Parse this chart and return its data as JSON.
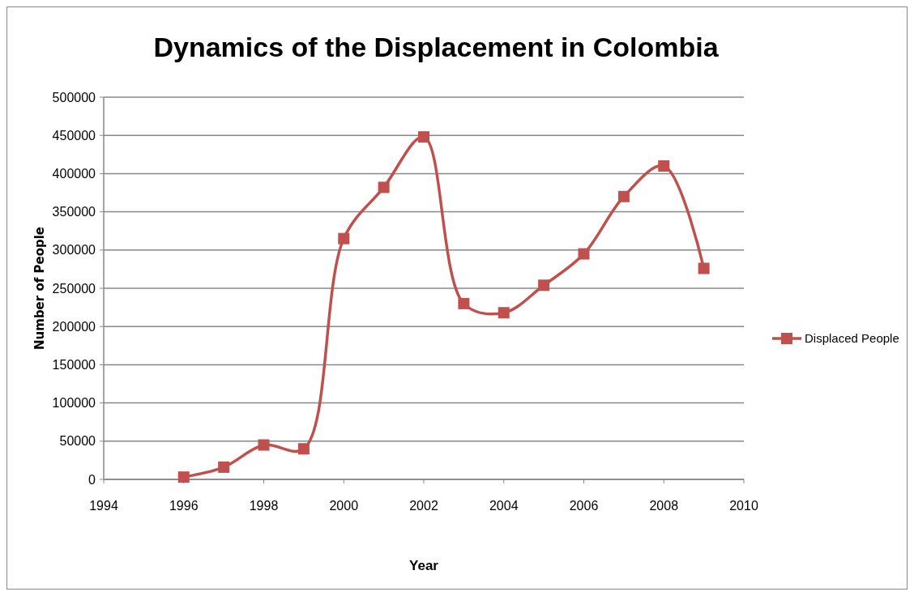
{
  "chart_data": {
    "type": "line",
    "title": "Dynamics of the Displacement in Colombia",
    "xlabel": "Year",
    "ylabel": "Number of People",
    "x": [
      1996,
      1997,
      1998,
      1999,
      2000,
      2001,
      2002,
      2003,
      2004,
      2005,
      2006,
      2007,
      2008,
      2009
    ],
    "series": [
      {
        "name": "Displaced People",
        "color": "#c0504d",
        "values": [
          3000,
          16000,
          45000,
          40000,
          315000,
          382000,
          448000,
          230000,
          218000,
          254000,
          295000,
          370000,
          410000,
          276000
        ]
      }
    ],
    "xlim": [
      1994,
      2010
    ],
    "xticks": [
      1994,
      1996,
      1998,
      2000,
      2002,
      2004,
      2006,
      2008,
      2010
    ],
    "ylim": [
      0,
      500000
    ],
    "yticks": [
      0,
      50000,
      100000,
      150000,
      200000,
      250000,
      300000,
      350000,
      400000,
      450000,
      500000
    ],
    "grid": "y",
    "legend": "right",
    "marker": "square",
    "line_style": "solid"
  }
}
